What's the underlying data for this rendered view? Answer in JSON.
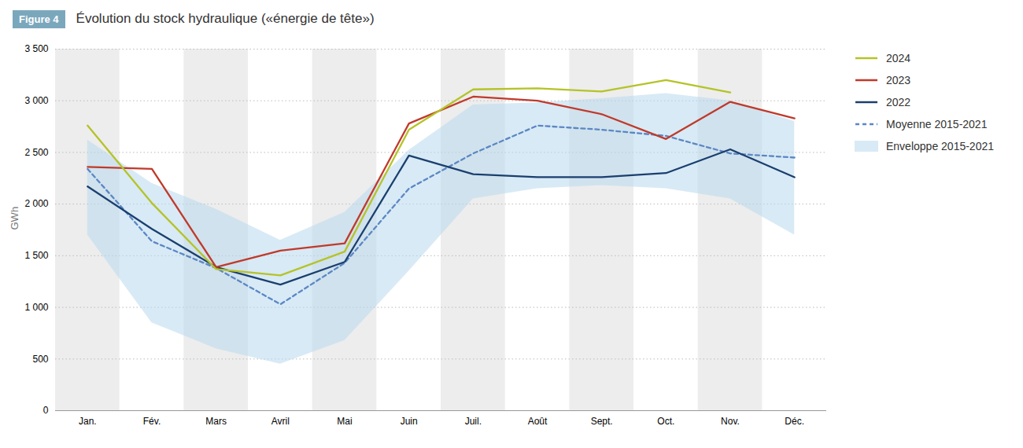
{
  "chart_data": {
    "type": "line",
    "title": "Évolution du stock hydraulique («énergie de tête»)",
    "annotations": [
      {
        "text": "Figure 4",
        "color": "#7ba7bc"
      }
    ],
    "ylabel": "GWh",
    "categories": [
      "Jan.",
      "Fév.",
      "Mars",
      "Avril",
      "Mai",
      "Juin",
      "Juil.",
      "Août",
      "Sept.",
      "Oct.",
      "Nov.",
      "Déc."
    ],
    "ylim": [
      0,
      3500
    ],
    "yticks": [
      0,
      500,
      {
        "value": 1000,
        "label": "1 000"
      },
      {
        "value": 1500,
        "label": "1 500"
      },
      {
        "value": 2000,
        "label": "2 000"
      },
      {
        "value": 2500,
        "label": "2 500"
      },
      {
        "value": 3000,
        "label": "3 000"
      },
      {
        "value": 3500,
        "label": "3 500"
      }
    ],
    "grid": true,
    "legend": "right",
    "series": [
      {
        "name": "2024",
        "color": "#b5c327",
        "line_style": "solid",
        "values": [
          2760,
          2010,
          1370,
          1310,
          1540,
          2720,
          3110,
          3120,
          3090,
          3200,
          3080,
          null
        ]
      },
      {
        "name": "2023",
        "color": "#c0392b",
        "line_style": "solid",
        "values": [
          2360,
          2340,
          1390,
          1550,
          1620,
          2780,
          3040,
          3000,
          2870,
          2630,
          2990,
          2830
        ]
      },
      {
        "name": "2022",
        "color": "#1a3f6f",
        "line_style": "solid",
        "values": [
          2170,
          1760,
          1390,
          1220,
          1440,
          2470,
          2290,
          2260,
          2260,
          2300,
          2530,
          2260
        ]
      },
      {
        "name": "Moyenne 2015-2021",
        "color": "#5b87c5",
        "line_style": "dashed",
        "values": [
          2340,
          1640,
          1380,
          1030,
          1430,
          2150,
          2490,
          2760,
          2720,
          2660,
          2490,
          2450
        ]
      },
      {
        "name": "Enveloppe 2015-2021",
        "type": "area",
        "color": "#b8d9ed",
        "lower": [
          1700,
          850,
          600,
          450,
          680,
          1350,
          2050,
          2150,
          2180,
          2150,
          2050,
          1700
        ],
        "upper": [
          2620,
          2200,
          1950,
          1650,
          1920,
          2520,
          2960,
          2980,
          3020,
          3070,
          3000,
          2800
        ]
      }
    ]
  }
}
